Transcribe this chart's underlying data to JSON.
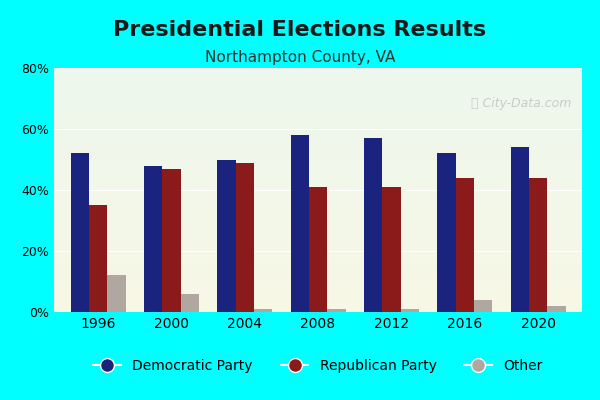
{
  "title": "Presidential Elections Results",
  "subtitle": "Northampton County, VA",
  "years": [
    1996,
    2000,
    2004,
    2008,
    2012,
    2016,
    2020
  ],
  "democratic": [
    52,
    48,
    50,
    58,
    57,
    52,
    54
  ],
  "republican": [
    35,
    47,
    49,
    41,
    41,
    44,
    44
  ],
  "other": [
    12,
    6,
    1,
    1,
    1,
    4,
    2
  ],
  "dem_color": "#1a237e",
  "rep_color": "#8b1a1a",
  "other_color": "#b0a8a0",
  "outer_bg": "#00ffff",
  "ylim": [
    0,
    80
  ],
  "yticks": [
    0,
    20,
    40,
    60,
    80
  ],
  "ytick_labels": [
    "0%",
    "20%",
    "40%",
    "60%",
    "80%"
  ],
  "bar_width": 0.25,
  "title_fontsize": 16,
  "subtitle_fontsize": 11,
  "legend_fontsize": 10
}
